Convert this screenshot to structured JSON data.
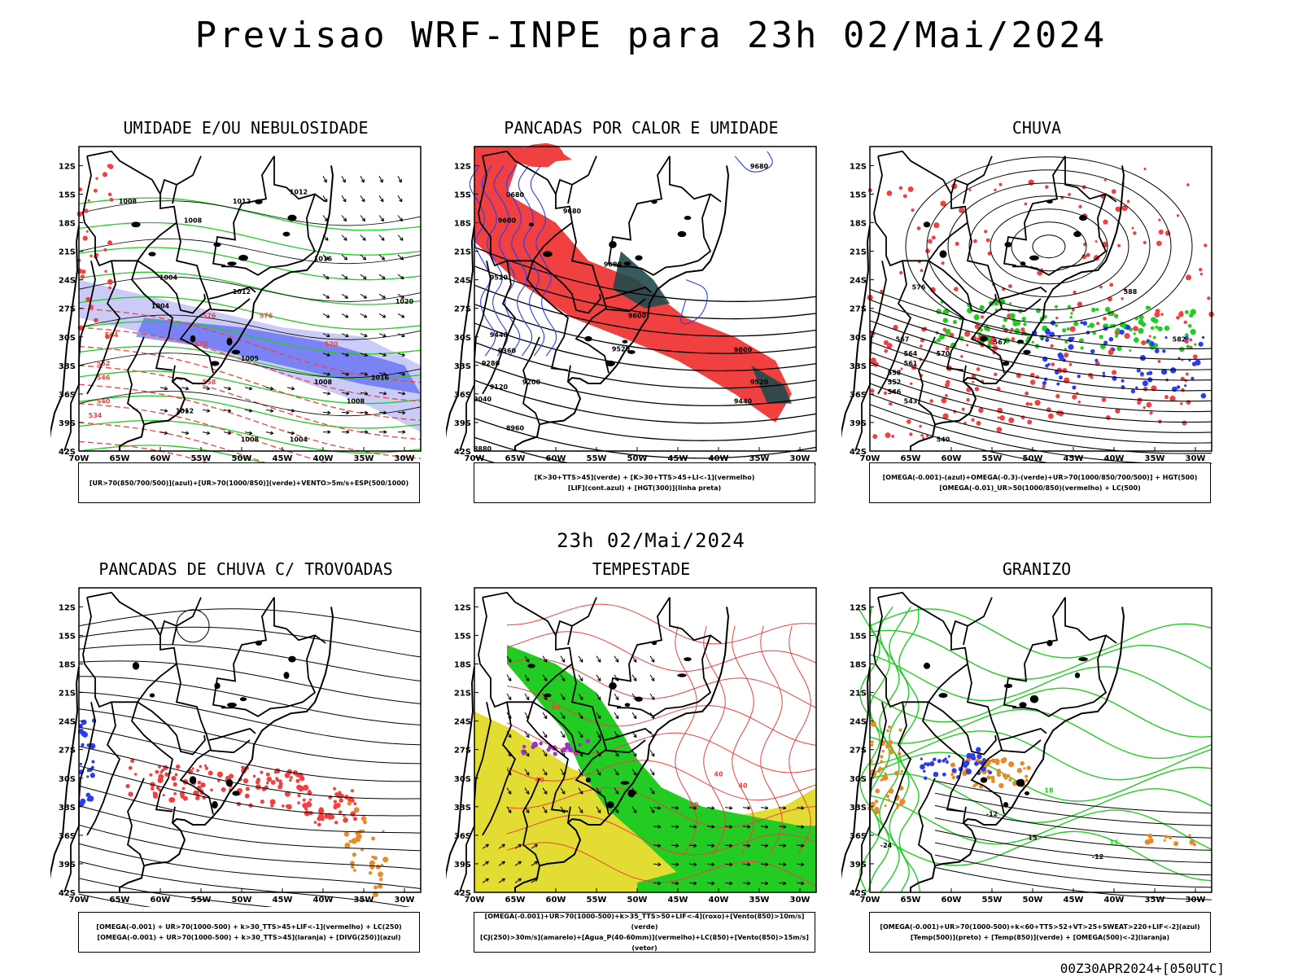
{
  "title": "Previsao WRF-INPE  para 23h 02/Mai/2024",
  "middle_title": "23h 02/Mai/2024",
  "footer": "00Z30APR2024+[050UTC]",
  "axes": {
    "lat_labels": [
      "12S",
      "15S",
      "18S",
      "21S",
      "24S",
      "27S",
      "30S",
      "33S",
      "36S",
      "39S",
      "42S"
    ],
    "lon_labels": [
      "70W",
      "65W",
      "60W",
      "55W",
      "50W",
      "45W",
      "40W",
      "35W",
      "30W"
    ],
    "lat_range": [
      -42,
      -10
    ],
    "lon_range": [
      -70,
      -28
    ]
  },
  "colors": {
    "red": "#f04040",
    "green": "#22cc22",
    "blue": "#2a3cf0",
    "lightblue": "#8c8cf0",
    "darkteal": "#1e4a4a",
    "yellow": "#e2dc33",
    "orange": "#e88a2a",
    "purple": "#9933cc"
  },
  "chart_data": [
    {
      "type": "map",
      "title": "UMIDADE E/OU NEBULOSIDADE",
      "legend": [
        "[UR>70(850/700/500)](azul)+[UR>70(1000/850)](verde)+VENTO>5m/s+ESP(500/1000)"
      ],
      "contour_labels": [
        "1008",
        "1012",
        "1012",
        "1016",
        "1004",
        "1008",
        "1012",
        "1020",
        "1008",
        "1016",
        "1004",
        "1008",
        "1012",
        "1005",
        "576",
        "570",
        "558",
        "552",
        "546",
        "540",
        "534",
        "564"
      ]
    },
    {
      "type": "map",
      "title": "PANCADAS POR CALOR E UMIDADE",
      "legend": [
        "[K>30+TTS>45](verde) + [K>30+TTS>45+LI<-1](vermelho)",
        "[LIF](cont.azul) + [HGT(300)](linha preta)"
      ],
      "contour_labels": [
        "9680",
        "9680",
        "9600",
        "9680",
        "9520",
        "9600",
        "9440",
        "9360",
        "9280",
        "9200",
        "9120",
        "9040",
        "8960",
        "9520",
        "9800",
        "9520",
        "9440",
        "8880"
      ]
    },
    {
      "type": "map",
      "title": "CHUVA",
      "legend": [
        "[OMEGA(-0.001)-(azul)+OMEGA(-0.3)-(verde)+UR>70(1000/850/700/500)] + HGT(500)",
        "[OMEGA(-0.01)_UR>50(1000/850)(vermelho) + LC(500)"
      ],
      "contour_labels": [
        "588",
        "576",
        "570",
        "567",
        "564",
        "561",
        "558",
        "552",
        "546",
        "543",
        "540",
        "582"
      ]
    },
    {
      "type": "map",
      "title": "PANCADAS DE CHUVA C/ TROVOADAS",
      "legend": [
        "[OMEGA(-0.001) + UR>70(1000-500) + k>30_TTS>45+LIF<-1](vermelho) + LC(250)",
        "[OMEGA(-0.001) + UR>70(1000-500) + k>30_TTS>45](laranja) + [DIVG(250)](azul)"
      ],
      "contour_labels": []
    },
    {
      "type": "map",
      "title": "TEMPESTADE",
      "legend": [
        "[OMEGA(-0.001)+UR>70(1000-500)+k>35_TTS>50+LIF<-4](roxo)+[Vento(850)>10m/s](verde)",
        "[CJ(250)>30m/s](amarelo)+[Agua_P(40-60mm)](vermelho)+LC(850)+[Vento(850)>15m/s](vetor)"
      ],
      "contour_labels": [
        "40",
        "40",
        "60",
        "40",
        "60"
      ]
    },
    {
      "type": "map",
      "title": "GRANIZO",
      "legend": [
        "[OMEGA(-0.001)+UR>70(1000-500)+k<60+TTS>52+VT>25+SWEAT>220+LIF<-2](azul)",
        "[Temp(500)](preto) + [Temp(850)](verde) + [OMEGA(500)<-2](laranja)"
      ],
      "contour_labels": [
        "-24",
        "-12",
        "15",
        "-12",
        "18",
        "15"
      ]
    }
  ]
}
